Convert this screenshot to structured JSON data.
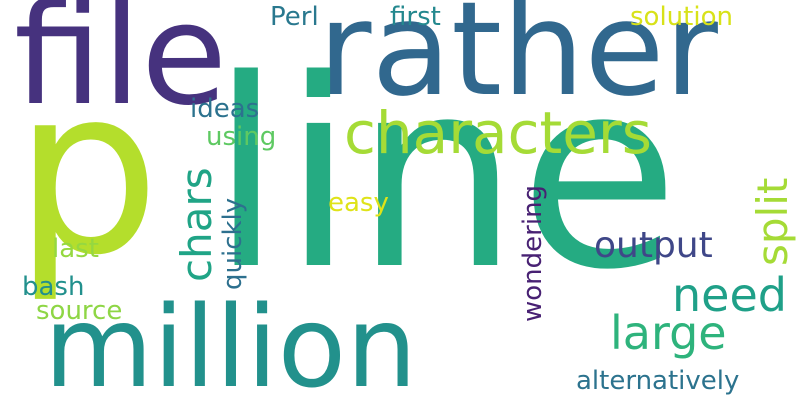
{
  "words": [
    {
      "text": "file",
      "color": "#46327e"
    },
    {
      "text": "rather",
      "color": "#31688e"
    },
    {
      "text": "line",
      "color": "#25ab82"
    },
    {
      "text": "p",
      "color": "#b4de2c"
    },
    {
      "text": "characters",
      "color": "#a5db36"
    },
    {
      "text": "million",
      "color": "#22918c"
    },
    {
      "text": "split",
      "color": "#a5db36"
    },
    {
      "text": "chars",
      "color": "#20a486"
    },
    {
      "text": "need",
      "color": "#1fa088"
    },
    {
      "text": "large",
      "color": "#2eb37c"
    },
    {
      "text": "output",
      "color": "#3f4788"
    },
    {
      "text": "Perl",
      "color": "#29788e"
    },
    {
      "text": "first",
      "color": "#23888e"
    },
    {
      "text": "solution",
      "color": "#d8e219"
    },
    {
      "text": "ideas",
      "color": "#2c728e"
    },
    {
      "text": "using",
      "color": "#5ec962"
    },
    {
      "text": "quickly",
      "color": "#2d708e"
    },
    {
      "text": "easy",
      "color": "#dfe318"
    },
    {
      "text": "wondering",
      "color": "#482173"
    },
    {
      "text": "last",
      "color": "#95d840"
    },
    {
      "text": "bash",
      "color": "#22908d"
    },
    {
      "text": "source",
      "color": "#8ed645"
    },
    {
      "text": "alternatively",
      "color": "#2c738e"
    }
  ]
}
